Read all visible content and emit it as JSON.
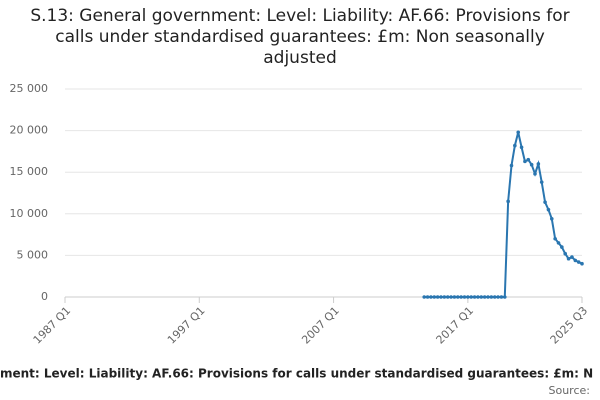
{
  "chart_data": {
    "type": "line",
    "title": "S.13: General government: Level: Liability: AF.66: Provisions for calls under standardised guarantees: £m: Non seasonally adjusted",
    "x_label": "ment: Level: Liability: AF.66: Provisions for calls under standardised guarantees: £m: N",
    "source": "Source:",
    "xlim": [
      "1987 Q1",
      "2025 Q3"
    ],
    "xticks": [
      "1987 Q1",
      "1997 Q1",
      "2007 Q1",
      "2017 Q1",
      "2025 Q3"
    ],
    "ylim": [
      0,
      25000
    ],
    "yticks": [
      0,
      {
        "value": 5000,
        "label": "5 000"
      },
      {
        "value": 10000,
        "label": "10 000"
      },
      {
        "value": 15000,
        "label": "15 000"
      },
      {
        "value": 20000,
        "label": "20 000"
      },
      {
        "value": 25000,
        "label": "25 000"
      }
    ],
    "grid": true,
    "color": "#2a76b0",
    "x": [
      "2013 Q4",
      "2014 Q1",
      "2014 Q2",
      "2014 Q3",
      "2014 Q4",
      "2015 Q1",
      "2015 Q2",
      "2015 Q3",
      "2015 Q4",
      "2016 Q1",
      "2016 Q2",
      "2016 Q3",
      "2016 Q4",
      "2017 Q1",
      "2017 Q2",
      "2017 Q3",
      "2017 Q4",
      "2018 Q1",
      "2018 Q2",
      "2018 Q3",
      "2018 Q4",
      "2019 Q1",
      "2019 Q2",
      "2019 Q3",
      "2019 Q4",
      "2020 Q1",
      "2020 Q2",
      "2020 Q3",
      "2020 Q4",
      "2021 Q1",
      "2021 Q2",
      "2021 Q3",
      "2021 Q4",
      "2022 Q1",
      "2022 Q2",
      "2022 Q3",
      "2022 Q4",
      "2023 Q1",
      "2023 Q2",
      "2023 Q3",
      "2023 Q4",
      "2024 Q1",
      "2024 Q2",
      "2024 Q3",
      "2024 Q4",
      "2025 Q1",
      "2025 Q2",
      "2025 Q3"
    ],
    "values": [
      0,
      0,
      0,
      0,
      0,
      0,
      0,
      0,
      0,
      0,
      0,
      0,
      0,
      0,
      0,
      0,
      0,
      0,
      0,
      0,
      0,
      0,
      0,
      0,
      0,
      11500,
      15800,
      18200,
      19800,
      18000,
      16300,
      16500,
      15900,
      14800,
      16000,
      13800,
      11400,
      10500,
      9400,
      7000,
      6500,
      6000,
      5200,
      4600,
      4800,
      4400,
      4200,
      4000
    ]
  }
}
